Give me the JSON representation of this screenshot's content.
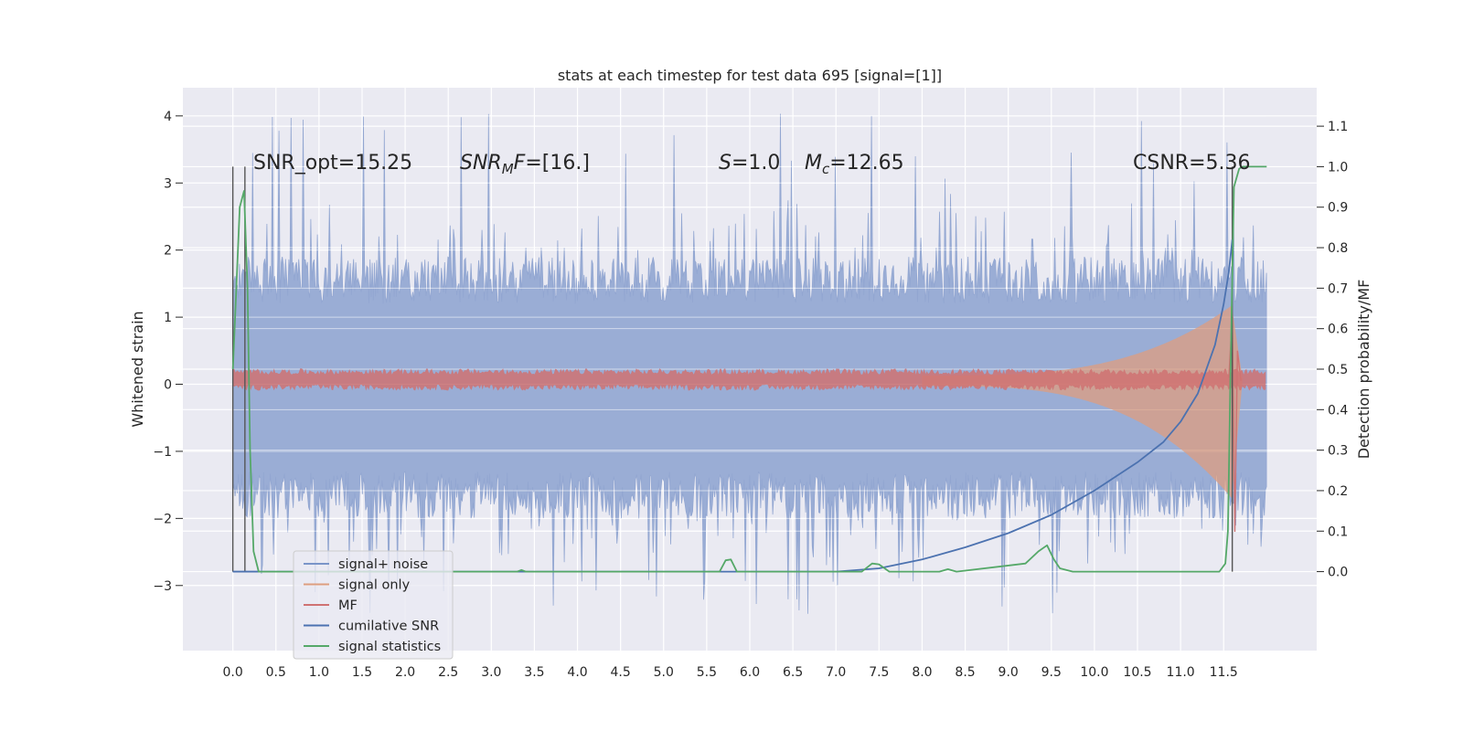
{
  "chart_data": {
    "type": "line",
    "title": "stats at each timestep for test data 695 [signal=[1]]",
    "ylabel_left": "Whitened strain",
    "ylabel_right": "Detection probability/MF",
    "xlim": [
      -0.58,
      12.58
    ],
    "ylim_left": [
      -3.97,
      4.42
    ],
    "ylim_right": [
      -0.195,
      1.195
    ],
    "x_ticks": [
      "0.0",
      "0.5",
      "1.0",
      "1.5",
      "2.0",
      "2.5",
      "3.0",
      "3.5",
      "4.0",
      "4.5",
      "5.0",
      "5.5",
      "6.0",
      "6.5",
      "7.0",
      "7.5",
      "8.0",
      "8.5",
      "9.0",
      "9.5",
      "10.0",
      "10.5",
      "11.0",
      "11.5"
    ],
    "y_ticks_left": [
      "4",
      "3",
      "2",
      "1",
      "0",
      "−1",
      "−2",
      "−3"
    ],
    "y_ticks_right": [
      "1.1",
      "1.0",
      "0.9",
      "0.8",
      "0.7",
      "0.6",
      "0.5",
      "0.4",
      "0.3",
      "0.2",
      "0.1",
      "0.0"
    ],
    "annotations": [
      {
        "id": "snr-opt",
        "text": "SNR_opt=15.25"
      },
      {
        "id": "snr-mf",
        "sym": "SNR",
        "sub": "M",
        "rest": "F=[16.]"
      },
      {
        "id": "s-val",
        "sym": "S",
        "rest": "=1.0"
      },
      {
        "id": "mc-val",
        "sym": "M",
        "sub": "c",
        "rest": "=12.65"
      },
      {
        "id": "csnr",
        "text": "CSNR=5.36"
      }
    ],
    "legend": {
      "placement": "lower-left",
      "entries": [
        {
          "label": "signal+ noise",
          "color": "#7a95c8"
        },
        {
          "label": "signal only",
          "color": "#dd9e7f"
        },
        {
          "label": "MF",
          "color": "#cf7272"
        },
        {
          "label": "cumilative SNR",
          "color": "#4c72b0"
        },
        {
          "label": "signal statistics",
          "color": "#55a868"
        }
      ]
    },
    "series": [
      {
        "id": "cumulative-snr",
        "axis": "right",
        "color": "#4c72b0",
        "x": [
          0.0,
          7.0,
          7.5,
          8.0,
          8.5,
          9.0,
          9.5,
          10.0,
          10.5,
          10.8,
          11.0,
          11.2,
          11.4,
          11.5,
          11.56,
          11.6
        ],
        "y": [
          0.0,
          0.0,
          0.008,
          0.03,
          0.06,
          0.095,
          0.14,
          0.2,
          0.27,
          0.32,
          0.37,
          0.44,
          0.56,
          0.66,
          0.74,
          0.82
        ]
      },
      {
        "id": "signal-statistics",
        "axis": "right",
        "color": "#55a868",
        "x": [
          0.0,
          0.08,
          0.13,
          0.17,
          0.2,
          0.24,
          0.3,
          3.3,
          3.35,
          3.4,
          5.65,
          5.72,
          5.78,
          5.85,
          5.9,
          7.3,
          7.42,
          7.5,
          7.62,
          8.2,
          8.3,
          8.4,
          9.2,
          9.35,
          9.45,
          9.53,
          9.6,
          9.75,
          11.45,
          11.52,
          11.55,
          11.58,
          11.62,
          11.68,
          11.72,
          11.8,
          12.0
        ],
        "y": [
          0.5,
          0.9,
          0.94,
          0.7,
          0.3,
          0.05,
          0.0,
          0.0,
          0.004,
          0.0,
          0.0,
          0.028,
          0.03,
          0.0,
          0.0,
          0.0,
          0.02,
          0.018,
          0.0,
          0.0,
          0.006,
          0.0,
          0.02,
          0.05,
          0.065,
          0.03,
          0.008,
          0.0,
          0.0,
          0.02,
          0.1,
          0.5,
          0.95,
          0.995,
          1.0,
          1.0,
          1.0
        ]
      },
      {
        "id": "marker-lines",
        "axis": "right",
        "color": "#555555",
        "x": [
          0.0,
          0.14,
          11.6
        ],
        "ylim": [
          0.0,
          1.0
        ]
      }
    ],
    "noise_band": {
      "x_range": [
        0.0,
        12.0
      ],
      "typical_range": [
        -1.6,
        1.5
      ],
      "spikes_to": [
        -3.5,
        4.1
      ]
    },
    "signal_only": {
      "x_start": 8.0,
      "x_end": 11.6,
      "max_amp": 1.05
    },
    "mf_band": {
      "x_range": [
        0.0,
        12.0
      ],
      "center": 0.07,
      "half_width": 0.12
    }
  }
}
